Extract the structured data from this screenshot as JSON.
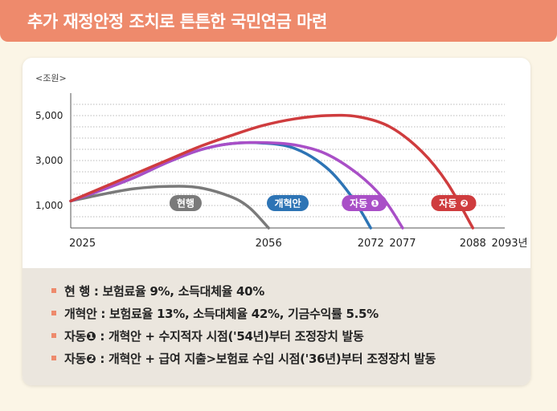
{
  "header": {
    "title": "추가 재정안정 조치로 튼튼한 국민연금 마련"
  },
  "chart_data": {
    "type": "line",
    "unit_label": "<조원>",
    "y_ticks": [
      1000,
      3000,
      5000
    ],
    "y_tick_labels": [
      "1,000",
      "3,000",
      "5,000"
    ],
    "ylim": [
      0,
      6000
    ],
    "x_ticks": [
      2025,
      2056,
      2072,
      2077,
      2088,
      2093
    ],
    "x_tick_labels": [
      "2025",
      "2056",
      "2072",
      "2077",
      "2088",
      "2093년"
    ],
    "xlim": [
      2025,
      2093
    ],
    "grid": true,
    "series": [
      {
        "name": "현행",
        "color": "#7a7a7a",
        "x": [
          2025,
          2030,
          2035,
          2040,
          2045,
          2050,
          2053,
          2056
        ],
        "y": [
          1200,
          1500,
          1750,
          1850,
          1800,
          1400,
          900,
          0
        ]
      },
      {
        "name": "개혁안",
        "color": "#2d74b5",
        "x": [
          2025,
          2030,
          2035,
          2040,
          2045,
          2050,
          2055,
          2060,
          2065,
          2069,
          2072
        ],
        "y": [
          1200,
          1700,
          2250,
          2900,
          3450,
          3750,
          3780,
          3550,
          2700,
          1400,
          0
        ]
      },
      {
        "name": "자동 ❶",
        "color": "#a94fc7",
        "x": [
          2025,
          2030,
          2035,
          2040,
          2045,
          2050,
          2055,
          2060,
          2065,
          2070,
          2074,
          2077
        ],
        "y": [
          1200,
          1700,
          2250,
          2900,
          3450,
          3750,
          3800,
          3700,
          3300,
          2400,
          1300,
          0
        ]
      },
      {
        "name": "자동 ❷",
        "color": "#cf3c3e",
        "x": [
          2025,
          2030,
          2035,
          2040,
          2045,
          2050,
          2055,
          2060,
          2065,
          2070,
          2075,
          2080,
          2084,
          2088
        ],
        "y": [
          1200,
          1800,
          2400,
          3000,
          3600,
          4100,
          4550,
          4850,
          5000,
          4950,
          4500,
          3400,
          2000,
          0
        ]
      }
    ]
  },
  "legend": [
    {
      "text": "현    행 : 보험료율 9%, 소득대체율 40%"
    },
    {
      "text": "개혁안 : 보험료율 13%, 소득대체율 42%, 기금수익률 5.5%"
    },
    {
      "text": "자동❶ : 개혁안 + 수지적자 시점('54년)부터 조정장치 발동"
    },
    {
      "text": "자동❷ : 개혁안 + 급여 지출>보험료 수입 시점('36년)부터 조정장치 발동"
    }
  ]
}
